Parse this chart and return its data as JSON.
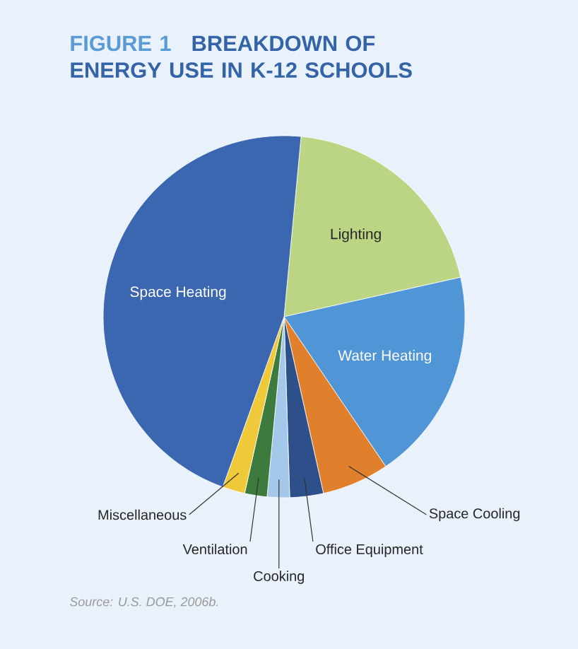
{
  "chart_data": {
    "type": "pie",
    "title": "FIGURE 1",
    "subtitle": "BREAKDOWN OF ENERGY USE IN K-12 SCHOOLS",
    "categories": [
      "Lighting",
      "Water Heating",
      "Space Cooling",
      "Office Equipment",
      "Cooking",
      "Ventilation",
      "Miscellaneous",
      "Space Heating"
    ],
    "values": [
      20,
      19,
      6,
      3,
      2,
      2,
      2,
      46
    ],
    "colors": [
      "#bcd584",
      "#5095d5",
      "#e07f2c",
      "#2d4f8a",
      "#a4c8ea",
      "#3d7a3d",
      "#f0c93a",
      "#3b66b0"
    ],
    "annotations": [
      "Source: U.S. DOE, 2006b."
    ]
  }
}
